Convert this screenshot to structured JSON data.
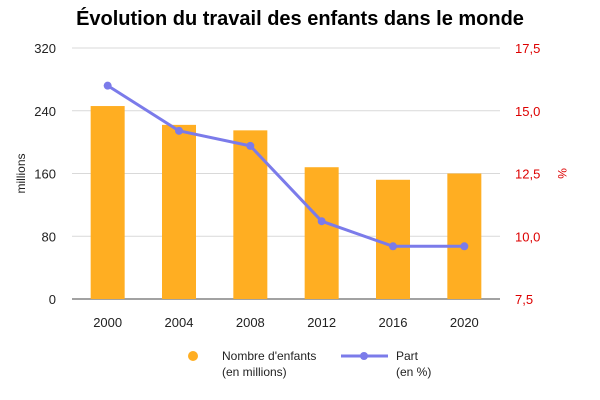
{
  "chart_data": {
    "type": "bar+line",
    "title": "Évolution du travail des enfants dans le monde",
    "categories": [
      "2000",
      "2004",
      "2008",
      "2012",
      "2016",
      "2020"
    ],
    "series": [
      {
        "name_lines": [
          "Nombre d'enfants",
          "(en millions)"
        ],
        "type": "bar",
        "axis": "left",
        "color": "#FFAE22",
        "values": [
          246,
          222,
          215,
          168,
          152,
          160
        ]
      },
      {
        "name_lines": [
          "Part",
          "(en %)"
        ],
        "type": "line",
        "axis": "right",
        "color": "#7B7BEA",
        "values": [
          16.0,
          14.2,
          13.6,
          10.6,
          9.6,
          9.6
        ]
      }
    ],
    "ylabel_left": "millions",
    "ylabel_right": "%",
    "ylim_left": [
      0,
      320
    ],
    "ylim_right": [
      7.5,
      17.5
    ],
    "yticks_left": [
      "0",
      "80",
      "160",
      "240",
      "320"
    ],
    "yticks_right": [
      "7,5",
      "10,0",
      "12,5",
      "15,0",
      "17,5"
    ],
    "right_axis_color": "#DD0000",
    "grid": true,
    "legend_position": "bottom"
  }
}
